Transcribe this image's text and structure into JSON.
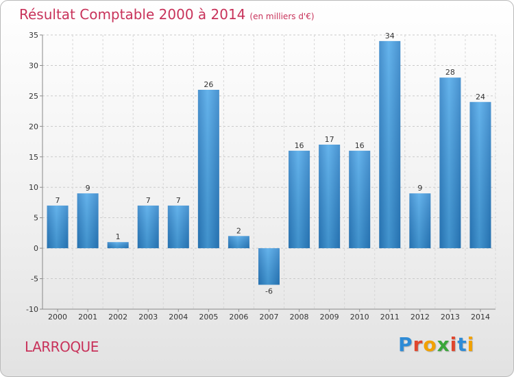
{
  "title": "Résultat Comptable 2000 à 2014",
  "unit": "(en milliers d'€)",
  "place": "LARROQUE",
  "logo": {
    "text": "Proxiti",
    "letter_colors": [
      "#2e8bd6",
      "#e0462d",
      "#f2a100",
      "#3aa63a",
      "#e0462d",
      "#2e8bd6",
      "#f2a100"
    ]
  },
  "chart_data": {
    "type": "bar",
    "categories": [
      "2000",
      "2001",
      "2002",
      "2003",
      "2004",
      "2005",
      "2006",
      "2007",
      "2008",
      "2009",
      "2010",
      "2011",
      "2012",
      "2013",
      "2014"
    ],
    "values": [
      7,
      9,
      1,
      7,
      7,
      26,
      2,
      -6,
      16,
      17,
      16,
      34,
      9,
      28,
      24
    ],
    "data_labels": [
      "7",
      "9",
      "1",
      "7",
      "7",
      "26",
      "2",
      "-6",
      "16",
      "17",
      "16",
      "34",
      "9",
      "28",
      "24"
    ],
    "ylim": [
      -10,
      35
    ],
    "yticks": [
      -10,
      -5,
      0,
      5,
      10,
      15,
      20,
      25,
      30,
      35
    ],
    "grid": "horizontal-dashed",
    "bar_color": "#3d95d8"
  }
}
